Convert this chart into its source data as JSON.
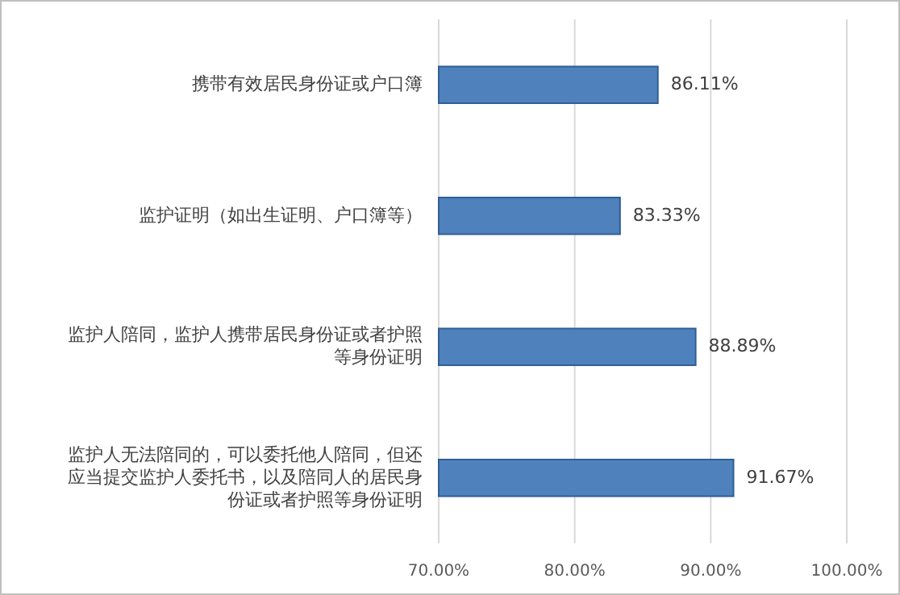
{
  "chart_data": {
    "type": "bar",
    "orientation": "horizontal",
    "categories": [
      "携带有效居民身份证或户口簿",
      "监护证明（如出生证明、户口簿等）",
      "监护人陪同，监护人携带居民身份证或者护照等身份证明",
      "监护人无法陪同的，可以委托他人陪同，但还应当提交监护人委托书，以及陪同人的居民身份证或者护照等身份证明"
    ],
    "values": [
      86.11,
      83.33,
      88.89,
      91.67
    ],
    "value_labels": [
      "86.11%",
      "83.33%",
      "88.89%",
      "91.67%"
    ],
    "color": "#4f81bd",
    "xlim": [
      70,
      100
    ],
    "xticks": [
      {
        "value": 70,
        "label": "70.00%"
      },
      {
        "value": 80,
        "label": "80.00%"
      },
      {
        "value": 90,
        "label": "90.00%"
      },
      {
        "value": 100,
        "label": "100.00%"
      }
    ],
    "grid": "x"
  }
}
